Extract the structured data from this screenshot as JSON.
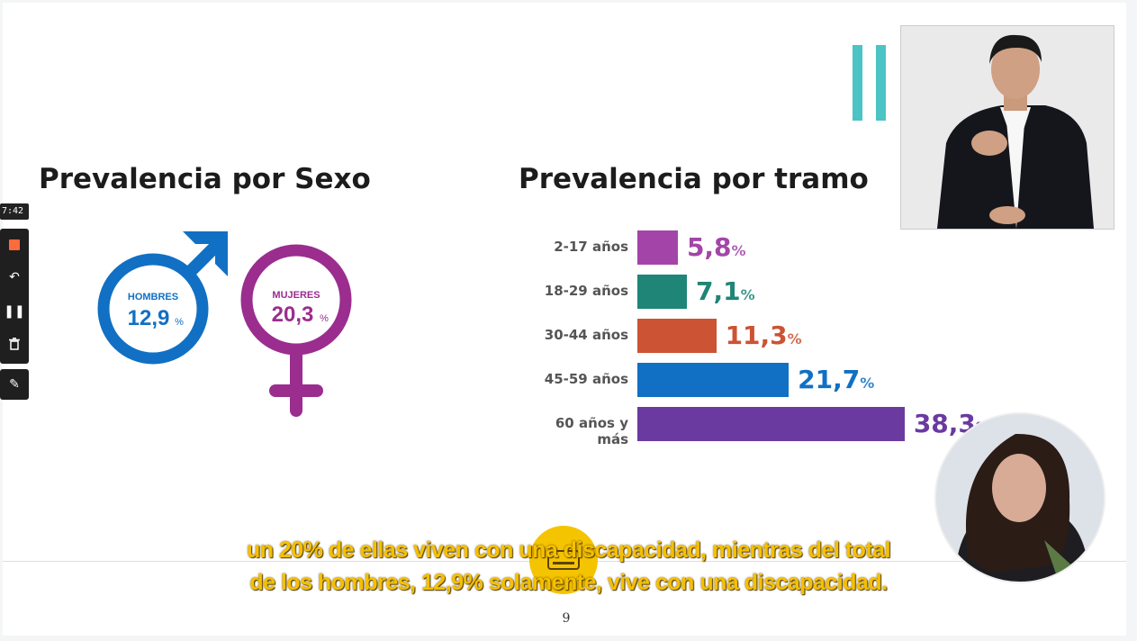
{
  "recorder": {
    "timer": "7:42",
    "stop_icon": "stop-icon",
    "undo_icon": "undo-icon",
    "pause_icon": "pause-icon",
    "delete_icon": "trash-icon",
    "pen_icon": "pen-icon"
  },
  "slide": {
    "left_title": "Prevalencia por Sexo",
    "right_title": "Prevalencia por tramo",
    "page_number": "9",
    "accent_color": "#4cc3c4"
  },
  "sex": {
    "male": {
      "label": "HOMBRES",
      "value": "12,9",
      "unit": "%",
      "color": "#1170c3"
    },
    "female": {
      "label": "MUJERES",
      "value": "20,3",
      "unit": "%",
      "color": "#9b2d8f"
    }
  },
  "chart_data": {
    "type": "bar",
    "orientation": "horizontal",
    "title": "Prevalencia por tramo",
    "categories": [
      "2-17 años",
      "18-29 años",
      "30-44 años",
      "45-59 años",
      "60 años y más"
    ],
    "values": [
      5.8,
      7.1,
      11.3,
      21.7,
      38.3
    ],
    "value_labels": [
      "5,8",
      "7,1",
      "11,3",
      "21,7",
      "38,3"
    ],
    "unit": "%",
    "colors": [
      "#a345a8",
      "#1f8577",
      "#cc5333",
      "#1170c3",
      "#6a3aa0"
    ]
  },
  "subtitles": {
    "line1": "un 20% de ellas viven con una discapacidad, mientras del total",
    "line2": "de los hombres,  12,9% solamente, vive con una discapacidad.",
    "cc_icon": "closed-captions-icon"
  },
  "participants": {
    "interpreter_video": "sign-language-interpreter",
    "speaker_video": "speaker-camera"
  }
}
